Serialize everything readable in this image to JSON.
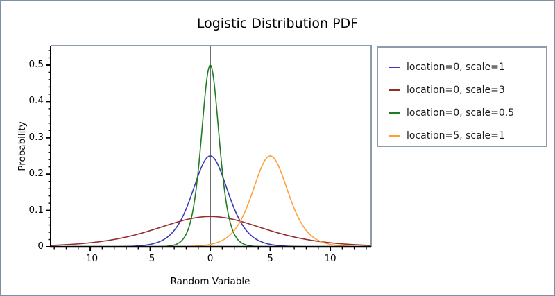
{
  "title": "Logistic Distribution PDF",
  "frame_color": "#8C9CAD",
  "axis_color": "#000000",
  "chart_data": {
    "type": "line",
    "title": "Logistic Distribution PDF",
    "xlabel": "Random Variable",
    "ylabel": "Probability",
    "xlim": [
      -13.3,
      13.35
    ],
    "ylim": [
      0,
      0.5534
    ],
    "x_major_ticks": [
      -10,
      -5,
      0,
      5,
      10
    ],
    "x_major_tick_labels": [
      "-10",
      "-5",
      "0",
      "5",
      "10"
    ],
    "x_minor_tick_step": 1,
    "y_major_ticks": [
      0,
      0.1,
      0.2,
      0.3,
      0.4,
      0.5
    ],
    "y_major_tick_labels": [
      "0",
      "0.1",
      "0.2",
      "0.3",
      "0.4",
      "0.5"
    ],
    "y_minor_tick_step": 0.02,
    "grid": false,
    "legend_position": "right-outside",
    "vertical_reference_line_x": 0,
    "formula": "f(x) = exp(-(x-location)/scale) / (scale * (1 + exp(-(x-location)/scale))^2)",
    "series": [
      {
        "name": "location=0, scale=1",
        "distribution": "logistic_pdf",
        "location": 0,
        "scale": 1,
        "color": "#3A3AB5",
        "peak": {
          "x": 0,
          "y": 0.25
        }
      },
      {
        "name": "location=0, scale=3",
        "distribution": "logistic_pdf",
        "location": 0,
        "scale": 3,
        "color": "#952D2D",
        "peak": {
          "x": 0,
          "y": 0.0833
        }
      },
      {
        "name": "location=0, scale=0.5",
        "distribution": "logistic_pdf",
        "location": 0,
        "scale": 0.5,
        "color": "#1F7D1F",
        "peak": {
          "x": 0,
          "y": 0.5
        }
      },
      {
        "name": "location=5, scale=1",
        "distribution": "logistic_pdf",
        "location": 5,
        "scale": 1,
        "color": "#FFA03C",
        "peak": {
          "x": 5,
          "y": 0.25
        }
      }
    ]
  }
}
